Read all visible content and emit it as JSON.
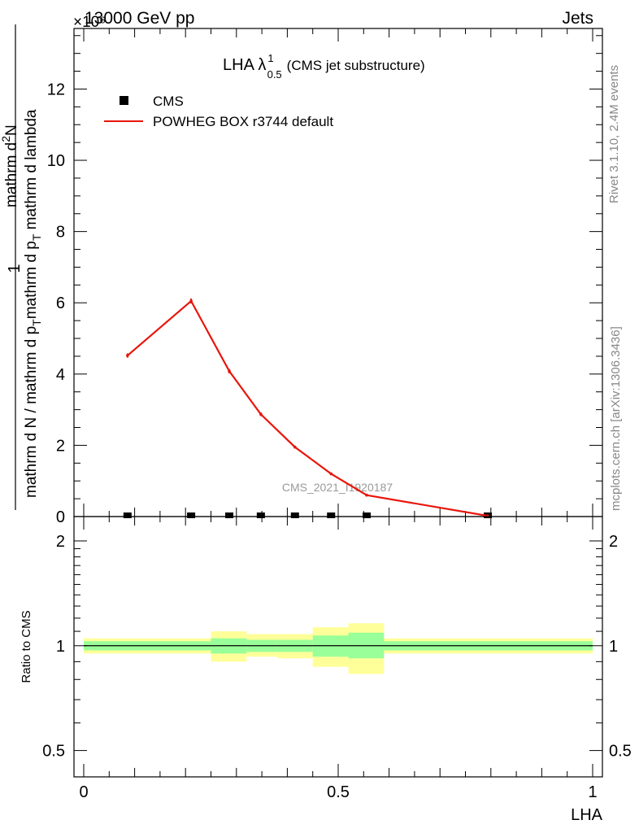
{
  "header": {
    "left_label": "13000 GeV pp",
    "right_label": "Jets",
    "multiplier": "×10⁶"
  },
  "side_labels": {
    "top": "Rivet 3.1.10,  2.4M events",
    "bottom": "mcplots.cern.ch [arXiv:1306.3436]"
  },
  "plot_title": {
    "main": "LHA λ",
    "sup": "1",
    "sub": "0.5",
    "suffix": "(CMS jet substructure)"
  },
  "watermark": "CMS_2021_I1920187",
  "y_axis_label": {
    "numerator": "1",
    "denominator": "mathrm d N / mathrm d p",
    "denominator_sub": "T",
    "right_num": "mathrm d",
    "right_num_sup": "2",
    "right_num_tail": "N",
    "right_den": "mathrm d p",
    "right_den_sub": "T",
    "right_den_tail": " mathrm d lambda"
  },
  "x_axis_label": "LHA",
  "ratio_axis_label": "Ratio to CMS",
  "legend": [
    {
      "label": "CMS",
      "marker": "square",
      "color": "#000000"
    },
    {
      "label": "POWHEG BOX r3744 default",
      "marker": "line",
      "color": "#e8160c"
    }
  ],
  "chart_data": [
    {
      "type": "line",
      "x": [
        0.086,
        0.211,
        0.286,
        0.348,
        0.415,
        0.486,
        0.556,
        0.794
      ],
      "series": [
        {
          "name": "CMS",
          "style": "markers",
          "color": "#000000",
          "values": [
            0.0,
            0.0,
            0.0,
            0.0,
            0.0,
            0.0,
            0.0,
            0.0
          ]
        },
        {
          "name": "POWHEG BOX r3744 default",
          "style": "line",
          "color": "#e8160c",
          "values": [
            4.52,
            6.05,
            4.08,
            2.87,
            1.95,
            1.2,
            0.6,
            0.02
          ],
          "errors": [
            0.06,
            0.07,
            0.06,
            0.05,
            0.04,
            0.03,
            0.02,
            0.01
          ]
        }
      ],
      "xlim": [
        0,
        1
      ],
      "ylim": [
        0,
        13.7
      ],
      "yticks": [
        "0",
        "2",
        "4",
        "6",
        "8",
        "10",
        "12"
      ],
      "ytick_values": [
        0,
        2,
        4,
        6,
        8,
        10,
        12
      ],
      "y_scale": "1e6",
      "grid": false,
      "legend_position": "top-left"
    },
    {
      "type": "area",
      "title": "Ratio to CMS",
      "x_edges": [
        0,
        0.25,
        0.32,
        0.38,
        0.45,
        0.52,
        0.59,
        1.0
      ],
      "bands": [
        {
          "name": "uncertainty (outer)",
          "color": "#ffff99",
          "low": [
            0.95,
            0.9,
            0.93,
            0.92,
            0.87,
            0.83,
            0.95
          ],
          "high": [
            1.05,
            1.1,
            1.08,
            1.08,
            1.13,
            1.16,
            1.05
          ]
        },
        {
          "name": "uncertainty (inner)",
          "color": "#99ff99",
          "low": [
            0.97,
            0.95,
            0.96,
            0.96,
            0.93,
            0.92,
            0.97
          ],
          "high": [
            1.03,
            1.05,
            1.04,
            1.04,
            1.07,
            1.09,
            1.03
          ]
        }
      ],
      "reference": 1.0,
      "xlim": [
        0,
        1
      ],
      "ylim": [
        0.42,
        2.35
      ],
      "y_scale": "log",
      "yticks": [
        "0.5",
        "1",
        "2"
      ],
      "ytick_values": [
        0.5,
        1,
        2
      ],
      "xticks": [
        "0",
        "0.5",
        "1"
      ],
      "xtick_values": [
        0,
        0.5,
        1
      ]
    }
  ]
}
